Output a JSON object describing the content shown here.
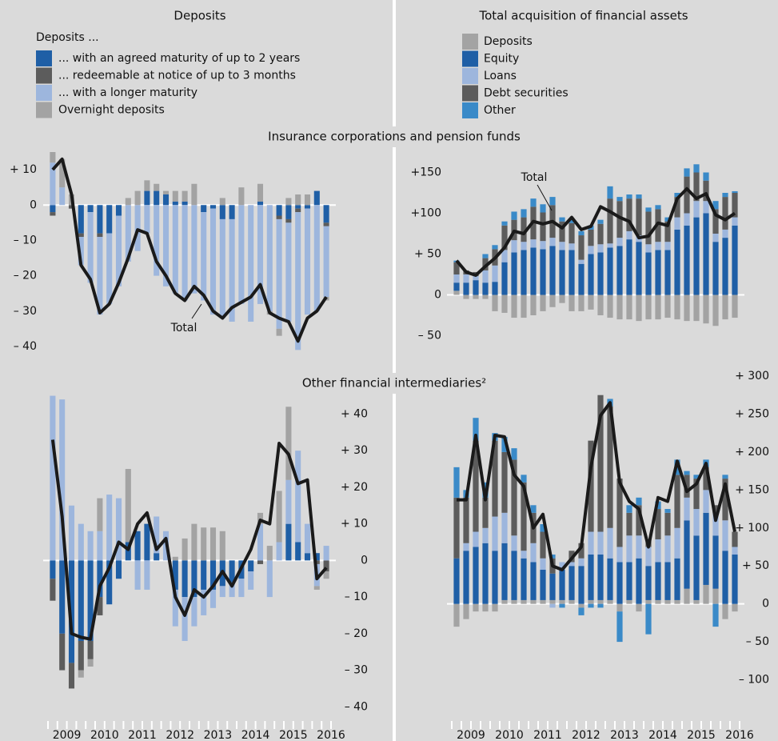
{
  "columns": [
    {
      "title": "Deposits",
      "legend_title": "Deposits ...",
      "series": [
        {
          "name": "... with an agreed maturity of up to 2 years",
          "color": "#1f5fa6"
        },
        {
          "name": "... redeemable at notice of up to 3 months",
          "color": "#5c5c5c"
        },
        {
          "name": "... with a longer maturity",
          "color": "#9db6dd"
        },
        {
          "name": "Overnight deposits",
          "color": "#a3a3a3"
        }
      ]
    },
    {
      "title": "Total acquisition of financial assets",
      "series": [
        {
          "name": "Deposits",
          "color": "#a3a3a3"
        },
        {
          "name": "Equity",
          "color": "#1f5fa6"
        },
        {
          "name": "Loans",
          "color": "#9db6dd"
        },
        {
          "name": "Debt securities",
          "color": "#5c5c5c"
        },
        {
          "name": "Other",
          "color": "#3a8ac8"
        }
      ]
    }
  ],
  "rows": [
    "Insurance corporations and pension funds",
    "Other financial intermediaries²"
  ],
  "chart_data": [
    {
      "type": "stacked_bar",
      "series": [
        {
          "values": [
            -2,
            0,
            0,
            -8,
            -2,
            -8,
            -8,
            -3,
            0,
            0,
            4,
            4,
            3,
            1,
            1,
            0,
            -2,
            -1,
            -4,
            -4,
            0,
            0,
            1,
            0,
            -3,
            -4,
            -1,
            -1,
            4,
            -5
          ]
        },
        {
          "values": [
            -1,
            0,
            -1,
            -1,
            0,
            -1,
            0,
            0,
            0,
            0,
            0,
            0,
            0,
            0,
            0,
            0,
            0,
            0,
            0,
            0,
            0,
            0,
            0,
            0,
            -1,
            -1,
            -1,
            0,
            0,
            -1
          ]
        },
        {
          "values": [
            12,
            5,
            0,
            -8,
            -20,
            -22,
            -20,
            -20,
            -16,
            -13,
            -8,
            -20,
            -23,
            -25,
            -27,
            -25,
            -25,
            -30,
            -28,
            -29,
            -28,
            -33,
            -28,
            -30,
            -31,
            -28,
            -39,
            -30,
            -30,
            -20
          ]
        },
        {
          "values": [
            3,
            8,
            3,
            0,
            0,
            0,
            0,
            0,
            2,
            4,
            3,
            2,
            1,
            3,
            3,
            6,
            0,
            0,
            2,
            0,
            5,
            0,
            5,
            -1,
            -2,
            2,
            3,
            3,
            0,
            -1
          ]
        }
      ],
      "line": {
        "name": "Total",
        "color": "#1a1a1a",
        "values": [
          10,
          13,
          3,
          -17,
          -21,
          -30.5,
          -28,
          -22,
          -15,
          -7,
          -8,
          -16,
          -20,
          -25,
          -27,
          -23,
          -25.5,
          -30,
          -32,
          -29,
          -27.5,
          -26,
          -22.5,
          -30.5,
          -32,
          -33,
          -38.5,
          -32,
          -30,
          -26
        ]
      },
      "ylim": [
        -45,
        15
      ],
      "yticks": [
        {
          "value": 10,
          "label": "+ 10"
        },
        0,
        {
          "value": -10,
          "label": "– 10"
        },
        {
          "value": -20,
          "label": "– 20"
        },
        {
          "value": -30,
          "label": "– 30"
        },
        {
          "value": -40,
          "label": "– 40"
        }
      ]
    },
    {
      "type": "stacked_bar",
      "series": [
        {
          "values": [
            5,
            -5,
            -5,
            -5,
            -20,
            -22,
            -28,
            -28,
            -25,
            -20,
            -15,
            -10,
            -20,
            -20,
            -18,
            -25,
            -28,
            -30,
            -30,
            -32,
            -30,
            -30,
            -28,
            -30,
            -32,
            -32,
            -35,
            -38,
            -30,
            -28
          ]
        },
        {
          "values": [
            10,
            15,
            18,
            15,
            16,
            40,
            52,
            55,
            58,
            56,
            60,
            55,
            55,
            38,
            50,
            52,
            58,
            60,
            68,
            65,
            52,
            55,
            55,
            80,
            85,
            95,
            100,
            65,
            70,
            85
          ]
        },
        {
          "values": [
            10,
            10,
            5,
            15,
            20,
            15,
            15,
            10,
            10,
            10,
            10,
            10,
            8,
            5,
            10,
            10,
            5,
            10,
            10,
            8,
            10,
            10,
            10,
            15,
            15,
            20,
            15,
            10,
            10,
            10
          ]
        },
        {
          "values": [
            15,
            5,
            5,
            15,
            20,
            30,
            25,
            30,
            40,
            35,
            40,
            25,
            25,
            30,
            20,
            25,
            55,
            45,
            40,
            45,
            40,
            40,
            25,
            25,
            45,
            35,
            25,
            30,
            40,
            30
          ]
        },
        {
          "values": [
            2,
            0,
            0,
            5,
            5,
            5,
            10,
            10,
            10,
            10,
            10,
            5,
            5,
            5,
            5,
            5,
            15,
            5,
            5,
            5,
            5,
            5,
            5,
            5,
            10,
            10,
            10,
            10,
            5,
            2
          ]
        }
      ],
      "line": {
        "name": "Total",
        "color": "#1a1a1a",
        "values": [
          42,
          28,
          24,
          35,
          45,
          58,
          78,
          75,
          90,
          87,
          90,
          82,
          95,
          80,
          84,
          108,
          102,
          95,
          90,
          70,
          72,
          88,
          85,
          118,
          130,
          118,
          124,
          98,
          92,
          100
        ]
      },
      "ylim": [
        -75,
        175
      ],
      "yticks": [
        {
          "value": 150,
          "label": "+150"
        },
        {
          "value": 100,
          "label": "+100"
        },
        {
          "value": 50,
          "label": "+ 50"
        },
        0,
        {
          "value": -50,
          "label": "– 50"
        }
      ]
    },
    {
      "type": "stacked_bar",
      "series": [
        {
          "values": [
            -5,
            -20,
            -28,
            -22,
            -22,
            -10,
            -12,
            -5,
            5,
            8,
            10,
            2,
            0,
            -8,
            -10,
            -10,
            -8,
            -8,
            -7,
            -6,
            -5,
            -3,
            0,
            0,
            0,
            10,
            5,
            2,
            2,
            0
          ]
        },
        {
          "values": [
            -6,
            -10,
            -7,
            -8,
            -5,
            -5,
            0,
            0,
            0,
            0,
            0,
            0,
            0,
            0,
            0,
            0,
            0,
            0,
            0,
            0,
            0,
            0,
            -1,
            0,
            0,
            0,
            0,
            0,
            -1,
            -3
          ]
        },
        {
          "values": [
            45,
            44,
            15,
            10,
            8,
            8,
            18,
            17,
            0,
            -8,
            -8,
            10,
            8,
            -10,
            -12,
            -8,
            -7,
            -5,
            -3,
            -4,
            -5,
            -5,
            10,
            -10,
            5,
            12,
            25,
            8,
            -6,
            4
          ]
        },
        {
          "values": [
            0,
            0,
            0,
            -2,
            -2,
            9,
            0,
            0,
            20,
            0,
            0,
            0,
            0,
            1,
            6,
            10,
            9,
            9,
            8,
            0,
            0,
            0,
            3,
            4,
            14,
            20,
            0,
            0,
            -1,
            -2
          ]
        }
      ],
      "line": {
        "color": "#1a1a1a",
        "values": [
          33,
          12,
          -20,
          -21,
          -21.5,
          -7,
          -2,
          5,
          3,
          10,
          13,
          3,
          6,
          -10,
          -15,
          -8,
          -10,
          -7,
          -3,
          -7,
          -2,
          3,
          11,
          10,
          32,
          29,
          21,
          22,
          -5,
          -2
        ]
      },
      "ylim": [
        -43,
        46
      ],
      "yticks": [
        {
          "value": 40,
          "label": "+ 40"
        },
        {
          "value": 30,
          "label": "+ 30"
        },
        {
          "value": 20,
          "label": "+ 20"
        },
        {
          "value": 10,
          "label": "+ 10"
        },
        0,
        {
          "value": -10,
          "label": "– 10"
        },
        {
          "value": -20,
          "label": "– 20"
        },
        {
          "value": -30,
          "label": "– 30"
        },
        {
          "value": -40,
          "label": "– 40"
        }
      ],
      "years": [
        "2009",
        "2010",
        "2011",
        "2012",
        "2013",
        "2014",
        "2015",
        "2016"
      ]
    },
    {
      "type": "stacked_bar",
      "series": [
        {
          "values": [
            -30,
            -20,
            -10,
            -10,
            -10,
            5,
            5,
            5,
            5,
            5,
            5,
            5,
            5,
            -5,
            5,
            5,
            5,
            -10,
            5,
            -10,
            5,
            5,
            5,
            5,
            20,
            5,
            25,
            20,
            -20,
            -10
          ]
        },
        {
          "values": [
            60,
            70,
            75,
            80,
            70,
            75,
            65,
            55,
            50,
            40,
            35,
            40,
            45,
            50,
            60,
            60,
            55,
            55,
            50,
            60,
            45,
            50,
            50,
            55,
            90,
            85,
            95,
            70,
            70,
            65
          ]
        },
        {
          "values": [
            0,
            10,
            20,
            20,
            45,
            40,
            20,
            10,
            25,
            15,
            -5,
            10,
            5,
            10,
            30,
            30,
            40,
            20,
            35,
            30,
            25,
            30,
            35,
            40,
            30,
            35,
            30,
            30,
            40,
            10
          ]
        },
        {
          "values": [
            80,
            60,
            120,
            40,
            100,
            80,
            100,
            90,
            40,
            35,
            20,
            0,
            15,
            20,
            120,
            180,
            160,
            90,
            30,
            40,
            10,
            40,
            30,
            70,
            30,
            40,
            30,
            10,
            55,
            20
          ]
        },
        {
          "values": [
            40,
            10,
            30,
            20,
            10,
            20,
            15,
            10,
            10,
            10,
            5,
            -5,
            0,
            -10,
            -5,
            -5,
            10,
            -40,
            10,
            10,
            -40,
            10,
            5,
            20,
            5,
            5,
            10,
            -30,
            5,
            0
          ]
        }
      ],
      "line": {
        "color": "#1a1a1a",
        "values": [
          137,
          137,
          222,
          137,
          222,
          220,
          170,
          155,
          100,
          118,
          50,
          45,
          60,
          75,
          180,
          248,
          265,
          160,
          135,
          125,
          75,
          140,
          135,
          188,
          148,
          158,
          185,
          110,
          158,
          95
        ]
      },
      "ylim": [
        -150,
        300
      ],
      "yticks": [
        {
          "value": 300,
          "label": "+ 300"
        },
        {
          "value": 250,
          "label": "+ 250"
        },
        {
          "value": 200,
          "label": "+ 200"
        },
        {
          "value": 150,
          "label": "+ 150"
        },
        {
          "value": 100,
          "label": "+ 100"
        },
        {
          "value": 50,
          "label": "+ 50"
        },
        0,
        {
          "value": -50,
          "label": "– 50"
        },
        {
          "value": -100,
          "label": "– 100"
        }
      ],
      "years": [
        "2009",
        "2010",
        "2011",
        "2012",
        "2013",
        "2014",
        "2015",
        "2016"
      ]
    }
  ]
}
